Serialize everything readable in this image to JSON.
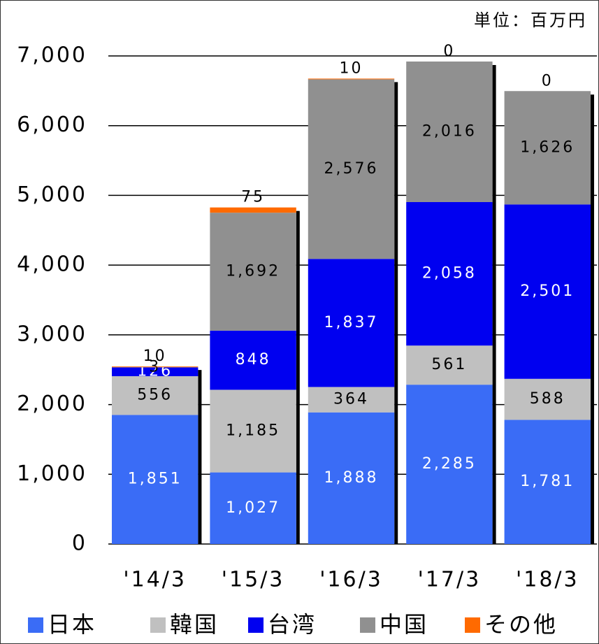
{
  "chart_data": {
    "type": "stacked_bar",
    "unit_label": "単位：百万円",
    "categories": [
      "'14/3",
      "'15/3",
      "'16/3",
      "'17/3",
      "'18/3"
    ],
    "series": [
      {
        "name": "日本",
        "color": "#3a6cf6",
        "label_color": "#ffffff",
        "values": [
          1851,
          1027,
          1888,
          2285,
          1781
        ],
        "value_labels": [
          "1,851",
          "1,027",
          "1,888",
          "2,285",
          "1,781"
        ]
      },
      {
        "name": "韓国",
        "color": "#c0c0c0",
        "label_color": "#000000",
        "values": [
          556,
          1185,
          364,
          561,
          588
        ],
        "value_labels": [
          "556",
          "1,185",
          "364",
          "561",
          "588"
        ]
      },
      {
        "name": "台湾",
        "color": "#0000f0",
        "label_color": "#ffffff",
        "values": [
          126,
          848,
          1837,
          2058,
          2501
        ],
        "value_labels": [
          "126",
          "848",
          "1,837",
          "2,058",
          "2,501"
        ]
      },
      {
        "name": "中国",
        "color": "#909090",
        "label_color": "#000000",
        "values": [
          3,
          1692,
          2576,
          2016,
          1626
        ],
        "value_labels": [
          "3",
          "1,692",
          "2,576",
          "2,016",
          "1,626"
        ]
      },
      {
        "name": "その他",
        "color": "#ff6a00",
        "label_color": "#000000",
        "values": [
          10,
          75,
          10,
          0,
          0
        ],
        "value_labels": [
          "10",
          "75",
          "10",
          "0",
          "0"
        ]
      }
    ],
    "ylim": [
      0,
      7000
    ],
    "yticks": [
      0,
      {
        "value": 1000,
        "label": "1,000"
      },
      {
        "value": 2000,
        "label": "2,000"
      },
      {
        "value": 3000,
        "label": "3,000"
      },
      {
        "value": 4000,
        "label": "4,000"
      },
      {
        "value": 5000,
        "label": "5,000"
      },
      {
        "value": 6000,
        "label": "6,000"
      },
      {
        "value": 7000,
        "label": "7,000"
      }
    ],
    "grid": true
  }
}
